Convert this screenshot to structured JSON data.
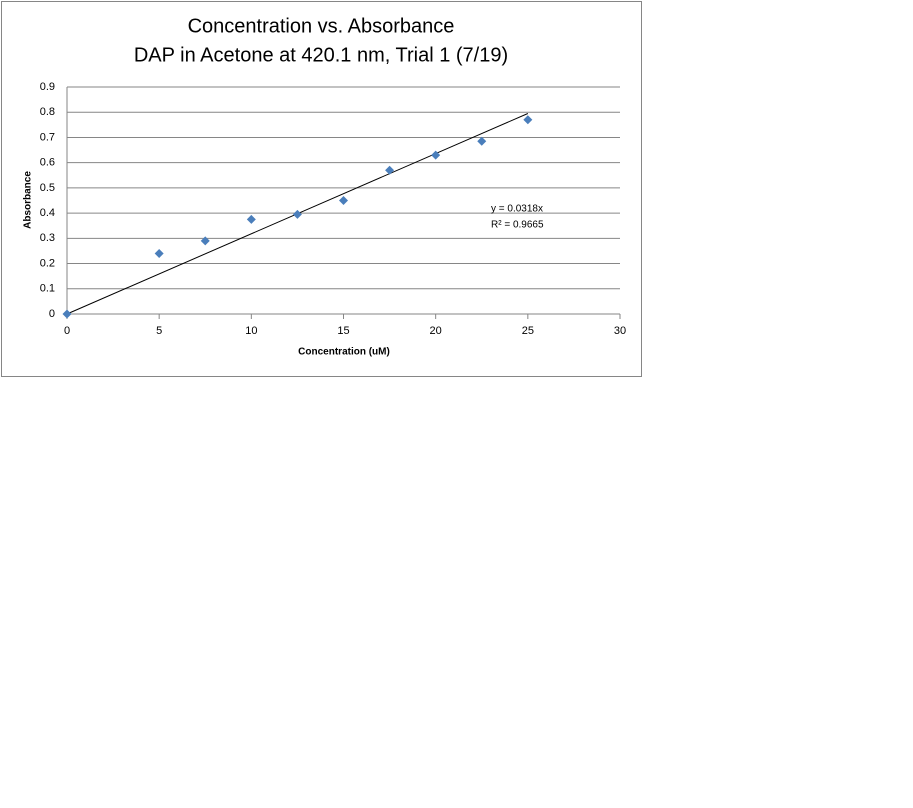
{
  "chart_data": {
    "type": "scatter",
    "title": "Concentration vs. Absorbance",
    "subtitle": "DAP in Acetone at 420.1 nm, Trial 1 (7/19)",
    "x_label": "Concentration (uM)",
    "y_label": "Absorbance",
    "series": [
      {
        "name": "Absorbance",
        "color": "#4a7ebb",
        "x": [
          0,
          5,
          7.5,
          10,
          12.5,
          15,
          17.5,
          20,
          22.5,
          25
        ],
        "values": [
          0,
          0.24,
          0.29,
          0.375,
          0.395,
          0.45,
          0.57,
          0.63,
          0.685,
          0.77
        ]
      }
    ],
    "trendline": {
      "equation": "y = 0.0318x",
      "slope": 0.0318,
      "r_squared_label": "R² = 0.9665",
      "r_squared": 0.9665,
      "color": "#000000"
    },
    "xlim": [
      0,
      30
    ],
    "xticks": [
      0,
      5,
      10,
      15,
      20,
      25,
      30
    ],
    "ylim": [
      0,
      0.9
    ],
    "yticks": [
      0,
      0.1,
      0.2,
      0.3,
      0.4,
      0.5,
      0.6,
      0.7,
      0.8,
      0.9
    ],
    "grid": true
  }
}
